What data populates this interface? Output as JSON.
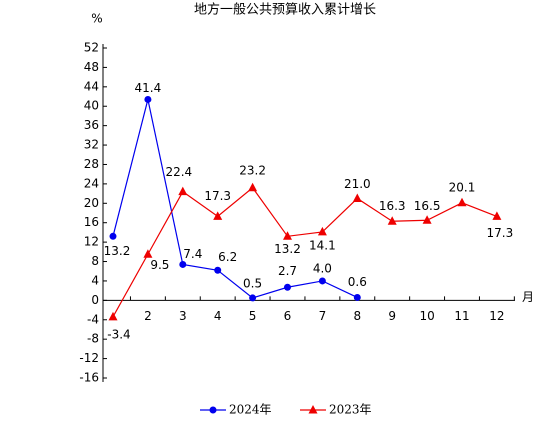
{
  "chart_data": {
    "type": "line",
    "title": "地方一般公共预算收入累计增长",
    "y_label": "%",
    "x_label": "月",
    "categories": [
      null,
      "2",
      "3",
      "4",
      "5",
      "6",
      "7",
      "8",
      "9",
      "10",
      "11",
      "12"
    ],
    "series": [
      {
        "name": "2024年",
        "color": "#0000ee",
        "marker": "circle",
        "values": [
          13.2,
          41.4,
          7.4,
          6.2,
          0.5,
          2.7,
          4.0,
          0.6,
          null,
          null,
          null,
          null
        ],
        "value_labels": [
          "13.2",
          "41.4",
          "7.4",
          "6.2",
          "0.5",
          "2.7",
          "4.0",
          "0.6",
          null,
          null,
          null,
          null
        ]
      },
      {
        "name": "2023年",
        "color": "#ee0000",
        "marker": "triangle",
        "values": [
          -3.4,
          9.5,
          22.4,
          17.3,
          23.2,
          13.2,
          14.1,
          21.0,
          16.3,
          16.5,
          20.1,
          17.3
        ],
        "value_labels": [
          "-3.4",
          "9.5",
          "22.4",
          "17.3",
          "23.2",
          "13.2",
          "14.1",
          "21.0",
          "16.3",
          "16.5",
          "20.1",
          "17.3"
        ]
      }
    ],
    "ylim": [
      -16,
      52
    ],
    "yticks": [
      -16,
      -12,
      -8,
      -4,
      0,
      4,
      8,
      12,
      16,
      20,
      24,
      28,
      32,
      36,
      40,
      44,
      48,
      52
    ],
    "legend": "bottom"
  }
}
